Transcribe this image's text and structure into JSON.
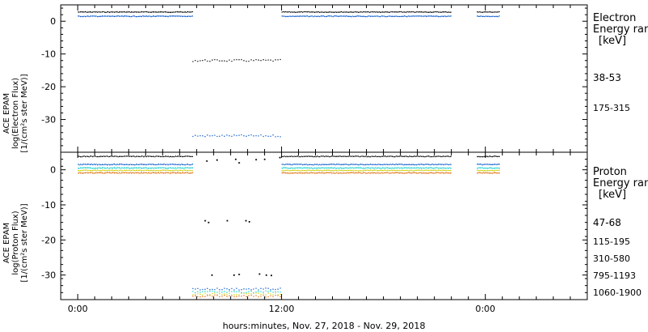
{
  "figure": {
    "xlabel": "hours:minutes, Nov. 27, 2018 - Nov. 29, 2018",
    "x_range_hours": [
      -1,
      30
    ],
    "x_tick_hours": [
      0,
      12,
      24
    ],
    "x_tick_labels": [
      "0:00",
      "12:00",
      "0:00"
    ],
    "x_minor_tick_hours": [
      0,
      1,
      2,
      3,
      4,
      5,
      6,
      7,
      8,
      9,
      10,
      11,
      12,
      13,
      14,
      15,
      16,
      17,
      18,
      19,
      20,
      21,
      22,
      23,
      24,
      25,
      26,
      27,
      28,
      29
    ]
  },
  "chart_data": [
    {
      "type": "scatter",
      "title": "",
      "ylabel": [
        "ACE EPAM",
        "log(Electron Flux)",
        "[1/(cm²s ster MeV)]"
      ],
      "ylim": [
        -40,
        5
      ],
      "yticks": [
        0,
        -10,
        -20,
        -30
      ],
      "ytick_labels": [
        "0",
        "-10",
        "-20",
        "-30"
      ],
      "legend": {
        "placement": "right",
        "title": [
          "Electron",
          "Energy range",
          "[keV]"
        ],
        "entries": [
          {
            "label": "38-53",
            "color": "#000000"
          },
          {
            "label": "175-315",
            "color": "#0055cc"
          }
        ]
      },
      "series": [
        {
          "name": "38-53",
          "color": "#000000",
          "segments": [
            {
              "x": [
                0,
                6.75
              ],
              "y": 2.8
            },
            {
              "x": [
                6.75,
                12
              ],
              "y": -12
            },
            {
              "x": [
                12,
                22
              ],
              "y": 2.8
            },
            {
              "x": [
                23.5,
                24.8
              ],
              "y": 2.8
            }
          ]
        },
        {
          "name": "175-315",
          "color": "#0055cc",
          "segments": [
            {
              "x": [
                0,
                6.75
              ],
              "y": 1.5
            },
            {
              "x": [
                6.75,
                12
              ],
              "y": -35
            },
            {
              "x": [
                12,
                22
              ],
              "y": 1.5
            },
            {
              "x": [
                23.5,
                24.8
              ],
              "y": 1.5
            }
          ]
        }
      ]
    },
    {
      "type": "scatter",
      "title": "",
      "ylabel": [
        "ACE EPAM",
        "log(Proton Flux)",
        "[1/(cm²s ster MeV)]"
      ],
      "ylim": [
        -37,
        5
      ],
      "yticks": [
        0,
        -10,
        -20,
        -30
      ],
      "ytick_labels": [
        "0",
        "-10",
        "-20",
        "-30"
      ],
      "legend": {
        "placement": "right",
        "title": [
          "Proton",
          "Energy range",
          "[keV]"
        ],
        "entries": [
          {
            "label": "47-68",
            "color": "#000000"
          },
          {
            "label": "115-195",
            "color": "#0055cc"
          },
          {
            "label": "310-580",
            "color": "#00cccc"
          },
          {
            "label": "795-1193",
            "color": "#cccc00"
          },
          {
            "label": "1060-1900",
            "color": "#dd6600"
          }
        ]
      },
      "series": [
        {
          "name": "47-68",
          "color": "#000000",
          "segments": [
            {
              "x": [
                0,
                6.75
              ],
              "y": 3.8
            },
            {
              "x": [
                12,
                22
              ],
              "y": 3.8
            },
            {
              "x": [
                23.5,
                24.8
              ],
              "y": 3.8
            }
          ],
          "scattered": [
            {
              "x": 7.6,
              "y": 2.5
            },
            {
              "x": 8.2,
              "y": 2.8
            },
            {
              "x": 9.3,
              "y": 3.0
            },
            {
              "x": 9.5,
              "y": 2.0
            },
            {
              "x": 10.5,
              "y": 2.9
            },
            {
              "x": 11.0,
              "y": 3.0
            },
            {
              "x": 11.9,
              "y": 3.5
            },
            {
              "x": 7.5,
              "y": -14.5
            },
            {
              "x": 7.7,
              "y": -15
            },
            {
              "x": 8.8,
              "y": -14.5
            },
            {
              "x": 9.9,
              "y": -14.5
            },
            {
              "x": 10.1,
              "y": -14.8
            },
            {
              "x": 7.9,
              "y": -30
            },
            {
              "x": 9.2,
              "y": -30
            },
            {
              "x": 9.5,
              "y": -29.8
            },
            {
              "x": 10.7,
              "y": -29.7
            },
            {
              "x": 11.1,
              "y": -30
            },
            {
              "x": 11.4,
              "y": -30.1
            }
          ]
        },
        {
          "name": "115-195",
          "color": "#0055cc",
          "segments": [
            {
              "x": [
                0,
                6.75
              ],
              "y": 1.5
            },
            {
              "x": [
                6.75,
                12
              ],
              "y": -34
            },
            {
              "x": [
                12,
                22
              ],
              "y": 1.5
            },
            {
              "x": [
                23.5,
                24.8
              ],
              "y": 1.5
            }
          ]
        },
        {
          "name": "310-580",
          "color": "#00cccc",
          "segments": [
            {
              "x": [
                0,
                6.75
              ],
              "y": 0.5
            },
            {
              "x": [
                6.75,
                12
              ],
              "y": -34.8
            },
            {
              "x": [
                12,
                22
              ],
              "y": 0.5
            },
            {
              "x": [
                23.5,
                24.8
              ],
              "y": 0.5
            }
          ]
        },
        {
          "name": "795-1193",
          "color": "#cccc00",
          "segments": [
            {
              "x": [
                0,
                6.75
              ],
              "y": -0.2
            },
            {
              "x": [
                6.75,
                12
              ],
              "y": -35.4
            },
            {
              "x": [
                12,
                22
              ],
              "y": -0.2
            },
            {
              "x": [
                23.5,
                24.8
              ],
              "y": -0.2
            }
          ]
        },
        {
          "name": "1060-1900",
          "color": "#dd6600",
          "segments": [
            {
              "x": [
                0,
                6.75
              ],
              "y": -0.9
            },
            {
              "x": [
                6.75,
                12
              ],
              "y": -36
            },
            {
              "x": [
                12,
                22
              ],
              "y": -0.9
            },
            {
              "x": [
                23.5,
                24.8
              ],
              "y": -0.9
            }
          ]
        }
      ]
    }
  ]
}
